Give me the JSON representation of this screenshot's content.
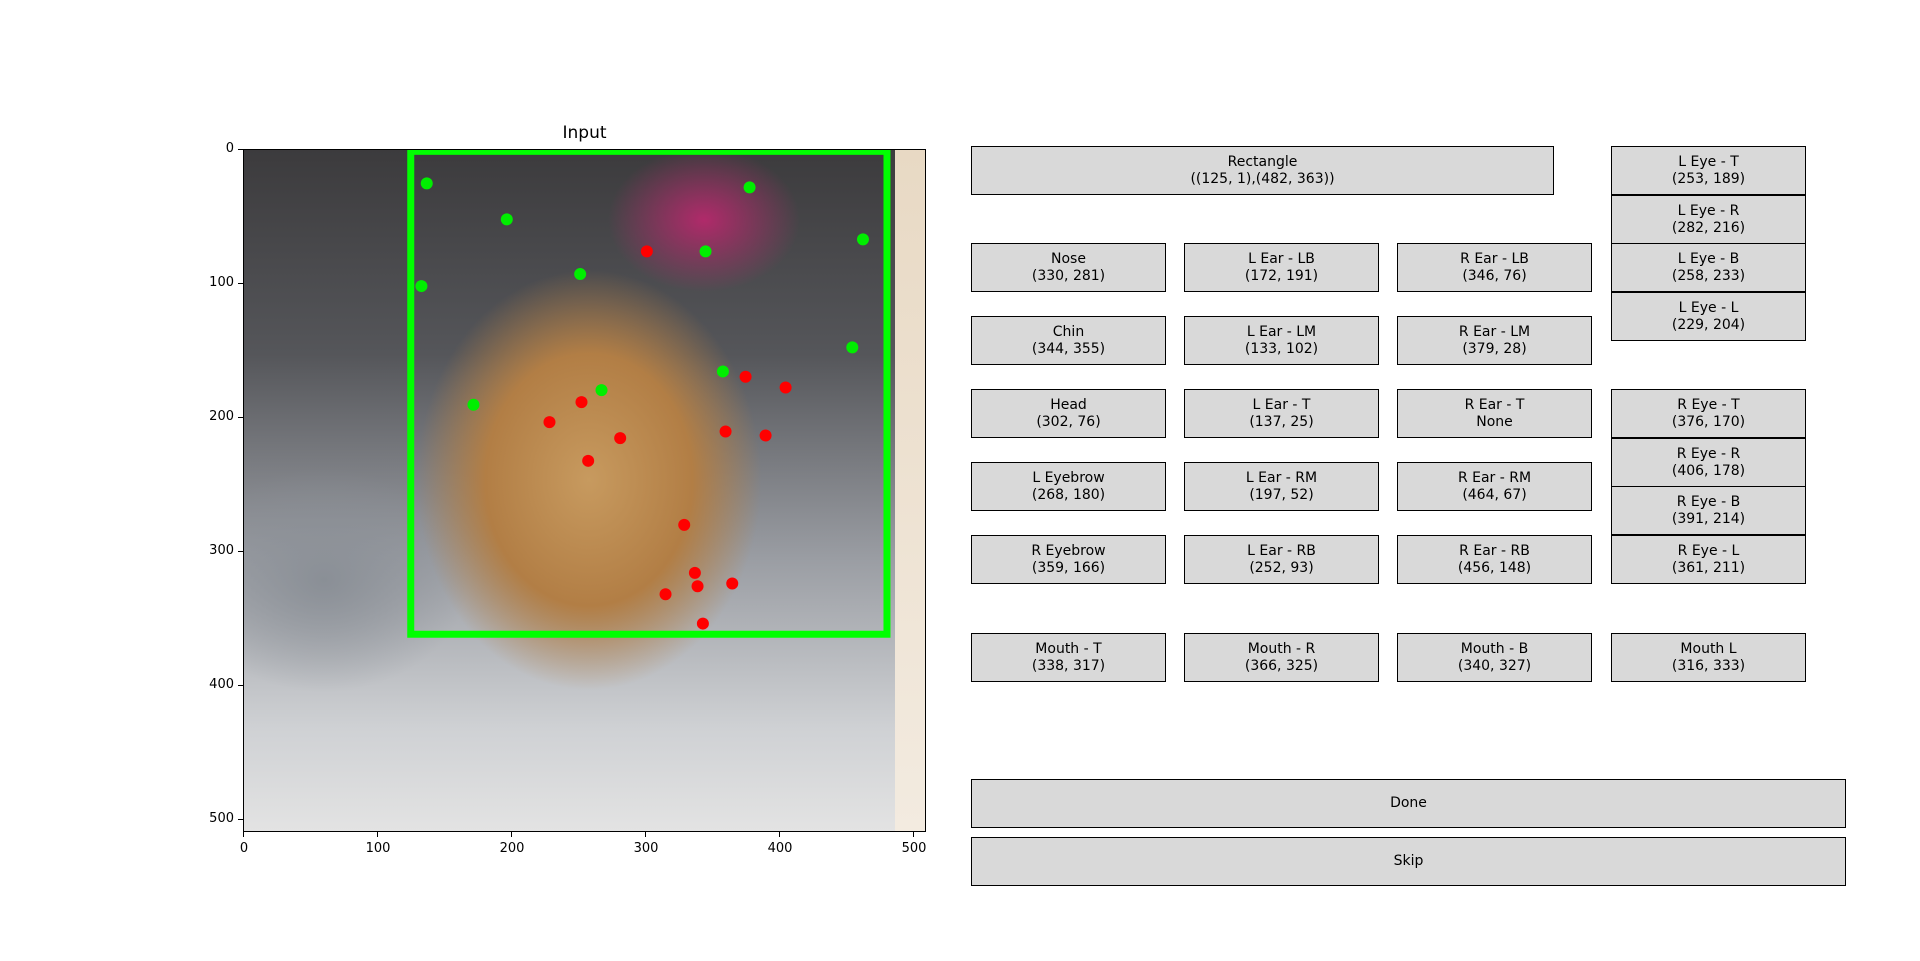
{
  "plot": {
    "title": "Input",
    "y_ticks": [
      "0",
      "100",
      "200",
      "300",
      "400",
      "500"
    ],
    "x_ticks": [
      "0",
      "100",
      "200",
      "300",
      "400",
      "500"
    ],
    "image_size": 512,
    "rectangle": {
      "x1": 125,
      "y1": 1,
      "x2": 482,
      "y2": 363,
      "color": "#00ff00"
    },
    "green_points": [
      [
        137,
        25
      ],
      [
        197,
        52
      ],
      [
        252,
        93
      ],
      [
        346,
        76
      ],
      [
        379,
        28
      ],
      [
        464,
        67
      ],
      [
        456,
        148
      ],
      [
        133,
        102
      ],
      [
        172,
        191
      ],
      [
        268,
        180
      ],
      [
        359,
        166
      ]
    ],
    "red_points": [
      [
        302,
        76
      ],
      [
        253,
        189
      ],
      [
        282,
        216
      ],
      [
        258,
        233
      ],
      [
        229,
        204
      ],
      [
        376,
        170
      ],
      [
        406,
        178
      ],
      [
        391,
        214
      ],
      [
        361,
        211
      ],
      [
        330,
        281
      ],
      [
        338,
        317
      ],
      [
        340,
        327
      ],
      [
        366,
        325
      ],
      [
        316,
        333
      ],
      [
        344,
        355
      ]
    ],
    "green_color": "#00ee00",
    "red_color": "#ff0000"
  },
  "buttons": {
    "rectangle": {
      "label": "Rectangle",
      "value": "((125, 1),(482, 363))"
    },
    "nose": {
      "label": "Nose",
      "value": "(330, 281)"
    },
    "chin": {
      "label": "Chin",
      "value": "(344, 355)"
    },
    "head": {
      "label": "Head",
      "value": "(302, 76)"
    },
    "l_eyebrow": {
      "label": "L Eyebrow",
      "value": "(268, 180)"
    },
    "r_eyebrow": {
      "label": "R Eyebrow",
      "value": "(359, 166)"
    },
    "l_ear_lb": {
      "label": "L Ear - LB",
      "value": "(172, 191)"
    },
    "l_ear_lm": {
      "label": "L Ear - LM",
      "value": "(133, 102)"
    },
    "l_ear_t": {
      "label": "L Ear - T",
      "value": "(137, 25)"
    },
    "l_ear_rm": {
      "label": "L Ear - RM",
      "value": "(197, 52)"
    },
    "l_ear_rb": {
      "label": "L Ear - RB",
      "value": "(252, 93)"
    },
    "r_ear_lb": {
      "label": "R Ear - LB",
      "value": "(346, 76)"
    },
    "r_ear_lm": {
      "label": "R Ear - LM",
      "value": "(379, 28)"
    },
    "r_ear_t": {
      "label": "R Ear - T",
      "value": "None"
    },
    "r_ear_rm": {
      "label": "R Ear - RM",
      "value": "(464, 67)"
    },
    "r_ear_rb": {
      "label": "R Ear - RB",
      "value": "(456, 148)"
    },
    "l_eye_t": {
      "label": "L Eye - T",
      "value": "(253, 189)"
    },
    "l_eye_r": {
      "label": "L Eye - R",
      "value": "(282, 216)"
    },
    "l_eye_b": {
      "label": "L Eye - B",
      "value": "(258, 233)"
    },
    "l_eye_l": {
      "label": "L Eye - L",
      "value": "(229, 204)"
    },
    "r_eye_t": {
      "label": "R Eye - T",
      "value": "(376, 170)"
    },
    "r_eye_r": {
      "label": "R Eye - R",
      "value": "(406, 178)"
    },
    "r_eye_b": {
      "label": "R Eye - B",
      "value": "(391, 214)"
    },
    "r_eye_l": {
      "label": "R Eye - L",
      "value": "(361, 211)"
    },
    "mouth_t": {
      "label": "Mouth - T",
      "value": "(338, 317)"
    },
    "mouth_r": {
      "label": "Mouth - R",
      "value": "(366, 325)"
    },
    "mouth_b": {
      "label": "Mouth - B",
      "value": "(340, 327)"
    },
    "mouth_l": {
      "label": "Mouth L",
      "value": "(316, 333)"
    },
    "done": {
      "label": "Done"
    },
    "skip": {
      "label": "Skip"
    }
  }
}
